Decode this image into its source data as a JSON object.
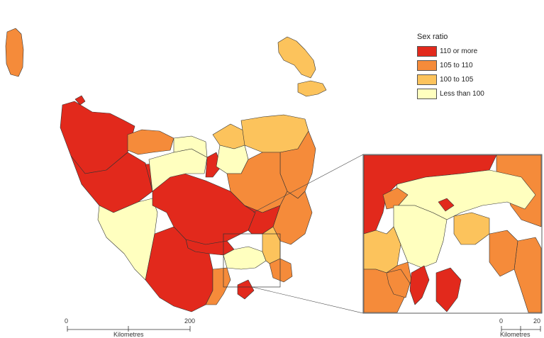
{
  "legend": {
    "title": "Sex ratio",
    "items": [
      {
        "label": "110 or more",
        "color": "#e2291c"
      },
      {
        "label": "105 to 110",
        "color": "#f58b3a"
      },
      {
        "label": "100 to 105",
        "color": "#fcc35c"
      },
      {
        "label": "Less than 100",
        "color": "#ffffbf"
      }
    ]
  },
  "main_scale": {
    "start": "0",
    "mid": "Kilometres",
    "end": "200"
  },
  "inset_scale": {
    "start": "0",
    "mid": "Kilometres",
    "end": "20"
  }
}
